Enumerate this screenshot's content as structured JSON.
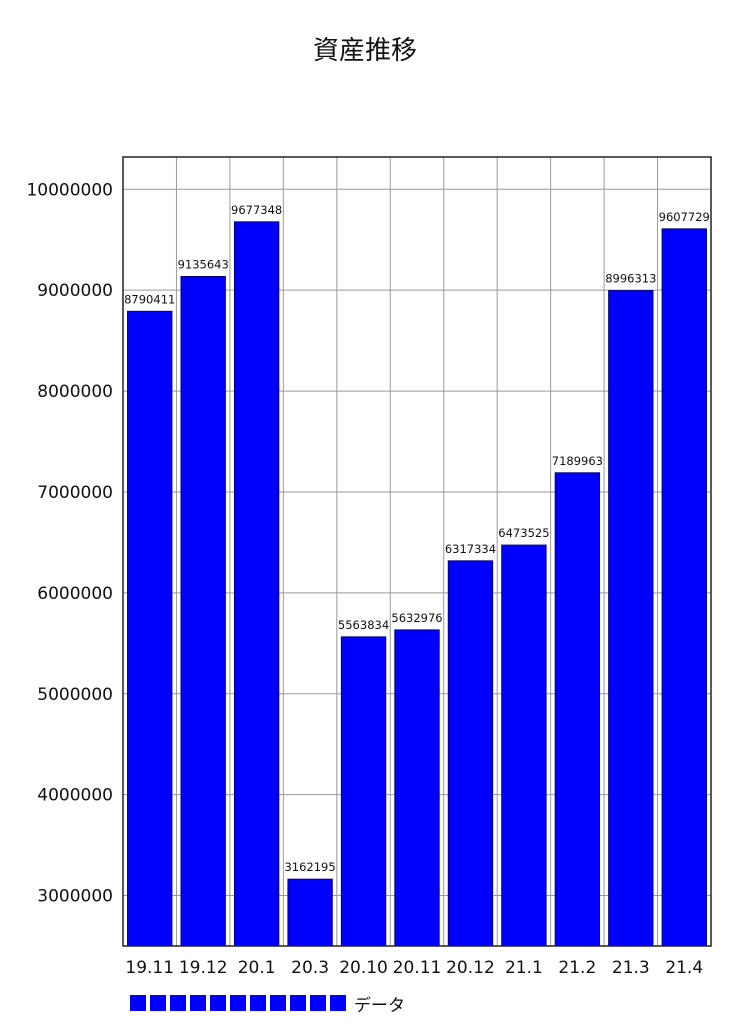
{
  "chart_data": {
    "type": "bar",
    "title": "資産推移",
    "xlabel": "",
    "ylabel": "",
    "categories": [
      "19.11",
      "19.12",
      "20.1",
      "20.3",
      "20.10",
      "20.11",
      "20.12",
      "21.1",
      "21.2",
      "21.3",
      "21.4"
    ],
    "series": [
      {
        "name": "データ",
        "color": "#0000ff",
        "values": [
          8790411,
          9135643,
          9677348,
          3162195,
          5563834,
          5632976,
          6317334,
          6473525,
          7189963,
          8996313,
          9607729
        ]
      }
    ],
    "ylim": [
      2500000,
      10320000
    ],
    "yticks": [
      3000000,
      4000000,
      5000000,
      6000000,
      7000000,
      8000000,
      9000000,
      10000000
    ],
    "grid": true,
    "legend_position": "bottom-left"
  }
}
